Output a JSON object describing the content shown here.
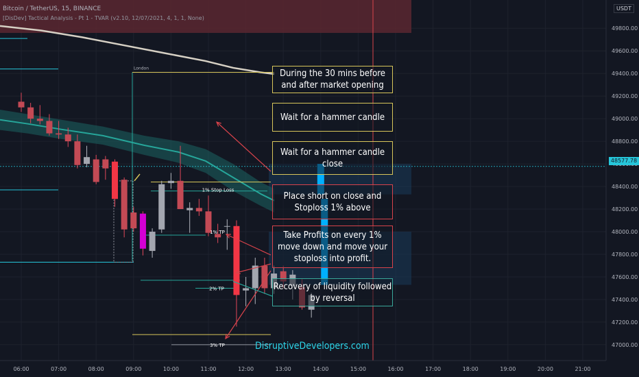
{
  "header": {
    "symbol_line": "Bitcoin / TetherUS, 15, BINANCE",
    "indicator_line": "[DisDev] Tactical Analysis - Pt 1 - TVAR (v2.10, 12/07/2021, 4, 1, 1, None)",
    "currency": "USDT"
  },
  "current_price": "48577.78",
  "brand": "DisruptiveDevelopers.com",
  "session_label": "London",
  "levels": {
    "stop_loss_label": "1% Stop Loss",
    "tp1_label": "1% TP",
    "tp2_label": "2% TP",
    "tp3_label": "3% TP"
  },
  "tips": [
    {
      "text": "During the 30 mins before and after market opening",
      "border": "#d8c65a"
    },
    {
      "text": "Wait for a hammer candle",
      "border": "#d8c65a"
    },
    {
      "text": "Wait for a hammer candle close",
      "border": "#d8c65a"
    },
    {
      "text": "Place short on close and Stoploss 1% above",
      "border": "#d9434b"
    },
    {
      "text": "Take Profits on every 1% move down and move your stoploss into profit.",
      "border": "#d9434b"
    },
    {
      "text": "Recovery of liquidity followed by reversal",
      "border": "#3aa89a"
    }
  ],
  "chart_data": {
    "type": "candlestick",
    "x_tick_labels": [
      "06:00",
      "07:00",
      "08:00",
      "09:00",
      "10:00",
      "11:00",
      "12:00",
      "13:00",
      "14:00",
      "15:00",
      "16:00",
      "17:00",
      "18:00",
      "19:00",
      "20:00",
      "21:00"
    ],
    "y_tick_labels": [
      "49800.00",
      "49600.00",
      "49400.00",
      "49200.00",
      "49000.00",
      "48800.00",
      "48600.00",
      "48400.00",
      "48200.00",
      "48000.00",
      "47800.00",
      "47600.00",
      "47400.00",
      "47200.00",
      "47000.00"
    ],
    "ylim": [
      46860,
      50050
    ],
    "candles": [
      {
        "t": 0.0,
        "o": 49150,
        "h": 49230,
        "l": 49060,
        "c": 49100
      },
      {
        "t": 0.25,
        "o": 49100,
        "h": 49140,
        "l": 48960,
        "c": 49000
      },
      {
        "t": 0.5,
        "o": 49000,
        "h": 49120,
        "l": 48950,
        "c": 48980
      },
      {
        "t": 0.75,
        "o": 48980,
        "h": 49040,
        "l": 48850,
        "c": 48870
      },
      {
        "t": 1.0,
        "o": 48870,
        "h": 48980,
        "l": 48820,
        "c": 48860
      },
      {
        "t": 1.25,
        "o": 48860,
        "h": 48920,
        "l": 48750,
        "c": 48800
      },
      {
        "t": 1.5,
        "o": 48800,
        "h": 48860,
        "l": 48560,
        "c": 48590
      },
      {
        "t": 1.75,
        "o": 48600,
        "h": 48760,
        "l": 48570,
        "c": 48660
      },
      {
        "t": 2.0,
        "o": 48640,
        "h": 48680,
        "l": 48420,
        "c": 48440
      },
      {
        "t": 2.25,
        "o": 48640,
        "h": 48670,
        "l": 48460,
        "c": 48560
      },
      {
        "t": 2.5,
        "o": 48620,
        "h": 48640,
        "l": 48220,
        "c": 48290,
        "color": "#f23645"
      },
      {
        "t": 2.75,
        "o": 48460,
        "h": 48480,
        "l": 47950,
        "c": 48020
      },
      {
        "t": 3.0,
        "o": 48170,
        "h": 48220,
        "l": 48000,
        "c": 48030
      },
      {
        "t": 3.25,
        "o": 48160,
        "h": 48180,
        "l": 47790,
        "c": 47850,
        "color": "#d400d4"
      },
      {
        "t": 3.5,
        "o": 47830,
        "h": 48030,
        "l": 47770,
        "c": 48000,
        "color": "#a3a6af"
      },
      {
        "t": 3.75,
        "o": 48020,
        "h": 48450,
        "l": 47990,
        "c": 48420,
        "color": "#a3a6af"
      },
      {
        "t": 4.0,
        "o": 48430,
        "h": 48520,
        "l": 48380,
        "c": 48450,
        "color": "#a3a6af"
      },
      {
        "t": 4.25,
        "o": 48450,
        "h": 48760,
        "l": 48200,
        "c": 48200
      },
      {
        "t": 4.5,
        "o": 48190,
        "h": 48260,
        "l": 47990,
        "c": 48210
      },
      {
        "t": 4.75,
        "o": 48210,
        "h": 48290,
        "l": 48140,
        "c": 48180
      },
      {
        "t": 5.0,
        "o": 48180,
        "h": 48320,
        "l": 47960,
        "c": 47990
      },
      {
        "t": 5.25,
        "o": 47980,
        "h": 48070,
        "l": 47900,
        "c": 47950
      },
      {
        "t": 5.5,
        "o": 48050,
        "h": 48110,
        "l": 47840,
        "c": 48050,
        "color": "#a3a6af"
      },
      {
        "t": 5.75,
        "o": 48050,
        "h": 48100,
        "l": 47160,
        "c": 47440,
        "color": "#f23645"
      },
      {
        "t": 6.0,
        "o": 47480,
        "h": 47600,
        "l": 47340,
        "c": 47500
      },
      {
        "t": 6.25,
        "o": 47500,
        "h": 47770,
        "l": 47360,
        "c": 47700,
        "color": "#a3a6af"
      },
      {
        "t": 6.5,
        "o": 47700,
        "h": 47770,
        "l": 47450,
        "c": 47500
      },
      {
        "t": 6.75,
        "o": 47500,
        "h": 47700,
        "l": 47450,
        "c": 47630
      },
      {
        "t": 7.0,
        "o": 47650,
        "h": 47700,
        "l": 47500,
        "c": 47560
      },
      {
        "t": 7.25,
        "o": 47520,
        "h": 47660,
        "l": 47400,
        "c": 47620
      },
      {
        "t": 7.5,
        "o": 47510,
        "h": 47580,
        "l": 47310,
        "c": 47330
      },
      {
        "t": 7.75,
        "o": 47310,
        "h": 47460,
        "l": 47240,
        "c": 47440,
        "color": "#a3a6af"
      },
      {
        "t": 8.0,
        "o": 48600,
        "h": 48600,
        "l": 48330,
        "c": 48330,
        "color": "#00b0ff"
      },
      {
        "t": 8.1,
        "o": 48290,
        "h": 48290,
        "l": 47530,
        "c": 47530,
        "color": "#00b0ff"
      }
    ],
    "levels": {
      "session_high": 49410,
      "stop_loss": 48440,
      "tp1": 47970,
      "tp2": 47500,
      "tp3": 47000,
      "low_line": 47090
    }
  }
}
